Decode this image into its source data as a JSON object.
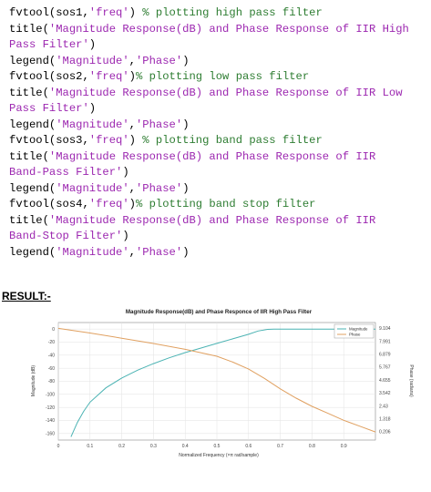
{
  "code_lines": [
    [
      {
        "t": "fvtool(sos1,",
        "k": "p"
      },
      {
        "t": "'freq'",
        "k": "s"
      },
      {
        "t": ") ",
        "k": "p"
      },
      {
        "t": "% plotting high pass filter",
        "k": "c"
      }
    ],
    [
      {
        "t": "title(",
        "k": "p"
      },
      {
        "t": "'Magnitude Response(dB) and Phase Response of IIR High",
        "k": "s"
      }
    ],
    [
      {
        "t": "Pass Filter'",
        "k": "s"
      },
      {
        "t": ")",
        "k": "p"
      }
    ],
    [
      {
        "t": "legend(",
        "k": "p"
      },
      {
        "t": "'Magnitude'",
        "k": "s"
      },
      {
        "t": ",",
        "k": "p"
      },
      {
        "t": "'Phase'",
        "k": "s"
      },
      {
        "t": ")",
        "k": "p"
      }
    ],
    [
      {
        "t": "fvtool(sos2,",
        "k": "p"
      },
      {
        "t": "'freq'",
        "k": "s"
      },
      {
        "t": ")",
        "k": "p"
      },
      {
        "t": "% plotting low pass filter",
        "k": "c"
      }
    ],
    [
      {
        "t": "title(",
        "k": "p"
      },
      {
        "t": "'Magnitude Response(dB) and Phase Response of IIR Low",
        "k": "s"
      }
    ],
    [
      {
        "t": "Pass Filter'",
        "k": "s"
      },
      {
        "t": ")",
        "k": "p"
      }
    ],
    [
      {
        "t": "legend(",
        "k": "p"
      },
      {
        "t": "'Magnitude'",
        "k": "s"
      },
      {
        "t": ",",
        "k": "p"
      },
      {
        "t": "'Phase'",
        "k": "s"
      },
      {
        "t": ")",
        "k": "p"
      }
    ],
    [
      {
        "t": "fvtool(sos3,",
        "k": "p"
      },
      {
        "t": "'freq'",
        "k": "s"
      },
      {
        "t": ") ",
        "k": "p"
      },
      {
        "t": "% plotting band pass filter",
        "k": "c"
      }
    ],
    [
      {
        "t": "title(",
        "k": "p"
      },
      {
        "t": "'Magnitude Response(dB) and Phase Response of IIR",
        "k": "s"
      }
    ],
    [
      {
        "t": "Band-Pass Filter'",
        "k": "s"
      },
      {
        "t": ")",
        "k": "p"
      }
    ],
    [
      {
        "t": "legend(",
        "k": "p"
      },
      {
        "t": "'Magnitude'",
        "k": "s"
      },
      {
        "t": ",",
        "k": "p"
      },
      {
        "t": "'Phase'",
        "k": "s"
      },
      {
        "t": ")",
        "k": "p"
      }
    ],
    [
      {
        "t": "fvtool(sos4,",
        "k": "p"
      },
      {
        "t": "'freq'",
        "k": "s"
      },
      {
        "t": ")",
        "k": "p"
      },
      {
        "t": "% plotting band stop filter",
        "k": "c"
      }
    ],
    [
      {
        "t": "title(",
        "k": "p"
      },
      {
        "t": "'Magnitude Response(dB) and Phase Response of IIR",
        "k": "s"
      }
    ],
    [
      {
        "t": "Band-Stop Filter'",
        "k": "s"
      },
      {
        "t": ")",
        "k": "p"
      }
    ],
    [
      {
        "t": "legend(",
        "k": "p"
      },
      {
        "t": "'Magnitude'",
        "k": "s"
      },
      {
        "t": ",",
        "k": "p"
      },
      {
        "t": "'Phase'",
        "k": "s"
      },
      {
        "t": ")",
        "k": "p"
      }
    ]
  ],
  "colors": {
    "plain": "#000000",
    "string": "#9c27b0",
    "comment": "#2e7d32"
  },
  "result_heading": "RESULT:-",
  "chart_data": {
    "type": "line",
    "title": "Magnitude Response(dB) and Phase Responce of IIR High Pass Filter",
    "xlabel": "Normalized Frequency (×π rad/sample)",
    "ylabel": "Magnitude (dB)",
    "ylabel_right": "Phase (radians)",
    "xlim": [
      0,
      1
    ],
    "ylim": [
      -170,
      10
    ],
    "ylim_right": [
      -0.5,
      9.6
    ],
    "x_ticks": [
      "0",
      "0.1",
      "0.2",
      "0.3",
      "0.4",
      "0.5",
      "0.6",
      "0.7",
      "0.8",
      "0.9"
    ],
    "x_tick_values": [
      0,
      0.1,
      0.2,
      0.3,
      0.4,
      0.5,
      0.6,
      0.7,
      0.8,
      0.9
    ],
    "y_ticks": [
      "0",
      "-20",
      "-40",
      "-60",
      "-80",
      "-100",
      "-120",
      "-140",
      "-160"
    ],
    "y_tick_values": [
      0,
      -20,
      -40,
      -60,
      -80,
      -100,
      -120,
      -140,
      -160
    ],
    "y_ticks_right": [
      "9.104",
      "7.991",
      "6.879",
      "5.767",
      "4.655",
      "3.542",
      "2.43",
      "1.318",
      "0.206"
    ],
    "y_tick_values_right": [
      9.104,
      7.991,
      6.879,
      5.767,
      4.655,
      3.542,
      2.43,
      1.318,
      0.206
    ],
    "grid": true,
    "legend_position": "top-right",
    "series": [
      {
        "name": "Magnitude",
        "axis": "left",
        "color": "#4bb3b3",
        "x": [
          0.04,
          0.06,
          0.08,
          0.1,
          0.15,
          0.2,
          0.25,
          0.3,
          0.35,
          0.4,
          0.45,
          0.5,
          0.55,
          0.6,
          0.63,
          0.66,
          0.68,
          0.7,
          0.75,
          0.8,
          0.85,
          0.9,
          1.0
        ],
        "y": [
          -165,
          -143,
          -126,
          -112,
          -90,
          -75,
          -63,
          -53,
          -44,
          -36,
          -29,
          -22,
          -15,
          -8,
          -3,
          -0.5,
          0,
          0,
          0,
          0,
          0,
          0,
          0
        ]
      },
      {
        "name": "Phase",
        "axis": "right",
        "color": "#e0a060",
        "x": [
          0,
          0.1,
          0.2,
          0.3,
          0.4,
          0.5,
          0.55,
          0.6,
          0.65,
          0.7,
          0.75,
          0.8,
          0.85,
          0.9,
          0.95,
          1.0
        ],
        "y": [
          9.1,
          8.7,
          8.25,
          7.8,
          7.3,
          6.7,
          6.2,
          5.6,
          4.8,
          3.9,
          3.1,
          2.4,
          1.8,
          1.2,
          0.7,
          0.2
        ]
      }
    ]
  }
}
